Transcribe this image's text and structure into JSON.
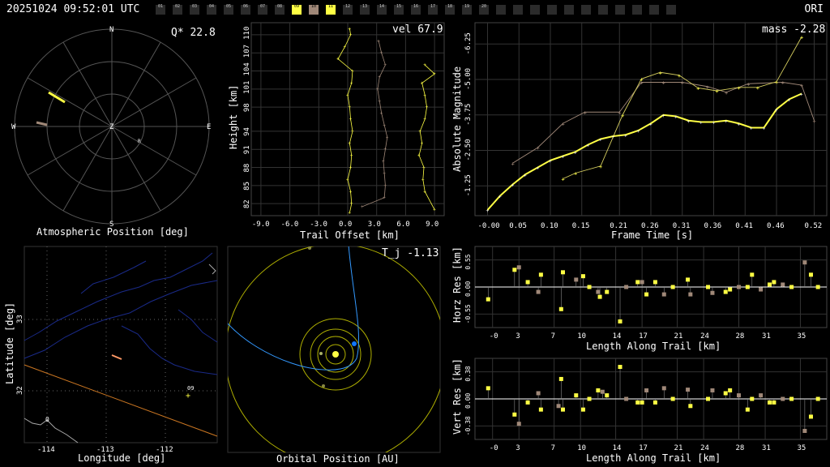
{
  "header": {
    "title": "20251024 09:52:01 UTC",
    "station": "ORI"
  },
  "cameras": [
    {
      "id": "01",
      "state": "off"
    },
    {
      "id": "02",
      "state": "off"
    },
    {
      "id": "03",
      "state": "off"
    },
    {
      "id": "04",
      "state": "off"
    },
    {
      "id": "05",
      "state": "off"
    },
    {
      "id": "06",
      "state": "off"
    },
    {
      "id": "07",
      "state": "off"
    },
    {
      "id": "08",
      "state": "off"
    },
    {
      "id": "09",
      "state": "yellow"
    },
    {
      "id": "10",
      "state": "tan"
    },
    {
      "id": "11",
      "state": "yellow"
    },
    {
      "id": "12",
      "state": "off"
    },
    {
      "id": "13",
      "state": "off"
    },
    {
      "id": "14",
      "state": "off"
    },
    {
      "id": "15",
      "state": "off"
    },
    {
      "id": "16",
      "state": "off"
    },
    {
      "id": "17",
      "state": "off"
    },
    {
      "id": "18",
      "state": "off"
    },
    {
      "id": "19",
      "state": "off"
    },
    {
      "id": "20",
      "state": "off"
    },
    {
      "id": "",
      "state": "off"
    },
    {
      "id": "",
      "state": "off"
    },
    {
      "id": "",
      "state": "off"
    },
    {
      "id": "",
      "state": "off"
    },
    {
      "id": "",
      "state": "off"
    },
    {
      "id": "",
      "state": "off"
    },
    {
      "id": "",
      "state": "off"
    },
    {
      "id": "",
      "state": "off"
    },
    {
      "id": "",
      "state": "off"
    },
    {
      "id": "",
      "state": "off"
    },
    {
      "id": "",
      "state": "off"
    }
  ],
  "colors": {
    "yellow": "#ffff44",
    "tan": "#a08878",
    "grid": "#555555",
    "orbit": "#b0b000",
    "blue": "#3399ff",
    "orange": "#cc7722",
    "map": "#1a2a88"
  },
  "sky": {
    "stat": "Q* 22.8",
    "caption": "Atmospheric Position [deg]",
    "dirs": {
      "n": "N",
      "s": "S",
      "e": "E",
      "w": "W",
      "z": "Z",
      "r": "R"
    },
    "tracks": [
      {
        "from": [
          -78,
          -42
        ],
        "to": [
          -58,
          -30
        ],
        "color": "yellow"
      },
      {
        "from": [
          -93,
          -5
        ],
        "to": [
          -80,
          -2
        ],
        "color": "tan"
      }
    ]
  },
  "height": {
    "stat": "vel 67.9",
    "xlabel": "Trail Offset [km]",
    "ylabel": "Height [km]",
    "xticks": [
      "-9.0",
      "-6.0",
      "-3.0",
      "0.0",
      "3.0",
      "6.0",
      "9.0"
    ],
    "yticks": [
      "82",
      "85",
      "88",
      "91",
      "94",
      "98",
      "101",
      "104",
      "107",
      "110"
    ],
    "series": [
      {
        "color": "yellow",
        "offset": 0,
        "points": [
          [
            0.2,
            80.5
          ],
          [
            0.4,
            82
          ],
          [
            0.3,
            84
          ],
          [
            0,
            86
          ],
          [
            0.3,
            88
          ],
          [
            0.4,
            90
          ],
          [
            0.2,
            92
          ],
          [
            0.5,
            94
          ],
          [
            0.3,
            96
          ],
          [
            0.2,
            98
          ],
          [
            0,
            100
          ],
          [
            0.4,
            102
          ],
          [
            0.5,
            104
          ],
          [
            -1,
            106
          ],
          [
            -0.3,
            108
          ],
          [
            0.3,
            110
          ],
          [
            0.2,
            111
          ]
        ]
      },
      {
        "color": "tan",
        "offset": 3.5,
        "points": [
          [
            -2,
            81.5
          ],
          [
            0.3,
            83
          ],
          [
            0.4,
            85
          ],
          [
            0.3,
            87
          ],
          [
            0.2,
            89
          ],
          [
            0.4,
            91
          ],
          [
            0.6,
            93
          ],
          [
            0.3,
            95
          ],
          [
            0,
            97
          ],
          [
            -0.2,
            99
          ],
          [
            -0.4,
            101
          ],
          [
            -0.2,
            103
          ],
          [
            0.4,
            105
          ],
          [
            0,
            107
          ],
          [
            -0.3,
            109
          ]
        ]
      },
      {
        "color": "yellow",
        "offset": 8,
        "points": [
          [
            1,
            81
          ],
          [
            0,
            84
          ],
          [
            -0.2,
            86
          ],
          [
            -0.1,
            88
          ],
          [
            -0.6,
            90
          ],
          [
            -0.3,
            92
          ],
          [
            -0.5,
            94
          ],
          [
            0,
            96
          ],
          [
            0.2,
            98
          ],
          [
            0,
            100
          ],
          [
            -0.3,
            102
          ],
          [
            1,
            103.5
          ],
          [
            0,
            105
          ]
        ]
      }
    ]
  },
  "mag": {
    "stat": "mass -2.28",
    "xlabel": "Frame Time [s]",
    "ylabel": "Absolute Magnitude",
    "xticks": [
      "-0.00",
      "0.05",
      "0.10",
      "0.15",
      "0.21",
      "0.26",
      "0.31",
      "0.36",
      "0.41",
      "0.46",
      "0.52"
    ],
    "yticks": [
      "-6.25",
      "-5.00",
      "-3.75",
      "-2.50",
      "-1.25"
    ],
    "smooth": [
      [
        0,
        -0.4
      ],
      [
        0.02,
        -0.9
      ],
      [
        0.04,
        -1.3
      ],
      [
        0.06,
        -1.65
      ],
      [
        0.08,
        -1.9
      ],
      [
        0.1,
        -2.15
      ],
      [
        0.12,
        -2.3
      ],
      [
        0.14,
        -2.45
      ],
      [
        0.16,
        -2.7
      ],
      [
        0.18,
        -2.9
      ],
      [
        0.2,
        -3.0
      ],
      [
        0.22,
        -3.05
      ],
      [
        0.24,
        -3.2
      ],
      [
        0.26,
        -3.45
      ],
      [
        0.28,
        -3.75
      ],
      [
        0.3,
        -3.7
      ],
      [
        0.32,
        -3.55
      ],
      [
        0.34,
        -3.5
      ],
      [
        0.36,
        -3.5
      ],
      [
        0.38,
        -3.55
      ],
      [
        0.4,
        -3.45
      ],
      [
        0.42,
        -3.3
      ],
      [
        0.44,
        -3.3
      ],
      [
        0.46,
        -3.95
      ],
      [
        0.48,
        -4.3
      ],
      [
        0.5,
        -4.5
      ]
    ],
    "yellow_pts": [
      [
        0.12,
        -1.5
      ],
      [
        0.14,
        -1.7
      ],
      [
        0.18,
        -1.95
      ],
      [
        0.215,
        -3.75
      ],
      [
        0.245,
        -5.02
      ],
      [
        0.275,
        -5.25
      ],
      [
        0.305,
        -5.15
      ],
      [
        0.335,
        -4.7
      ],
      [
        0.365,
        -4.6
      ],
      [
        0.4,
        -4.72
      ],
      [
        0.43,
        -4.72
      ],
      [
        0.46,
        -4.92
      ],
      [
        0.5,
        -6.5
      ]
    ],
    "tan_pts": [
      [
        0.04,
        -2.05
      ],
      [
        0.08,
        -2.6
      ],
      [
        0.12,
        -3.45
      ],
      [
        0.155,
        -3.85
      ],
      [
        0.21,
        -3.85
      ],
      [
        0.245,
        -4.9
      ],
      [
        0.28,
        -4.9
      ],
      [
        0.31,
        -4.9
      ],
      [
        0.35,
        -4.75
      ],
      [
        0.38,
        -4.55
      ],
      [
        0.415,
        -4.85
      ],
      [
        0.47,
        -4.9
      ],
      [
        0.5,
        -4.8
      ],
      [
        0.52,
        -3.55
      ]
    ]
  },
  "map": {
    "caption": "Longitude [deg]",
    "ylabel": "Latitude [deg]",
    "xticks": [
      "-114",
      "-113",
      "-112"
    ],
    "yticks": [
      "33",
      "32"
    ],
    "cam_label": "09",
    "corner": "0"
  },
  "orbit": {
    "stat": "T_j -1.13",
    "caption": "Orbital Position [AU]"
  },
  "horz": {
    "ylabel": "Horz Res [km]",
    "xlabel": "Length Along Trail [km]",
    "xticks": [
      "-0",
      "3",
      "7",
      "10",
      "14",
      "17",
      "21",
      "24",
      "28",
      "31",
      "35"
    ],
    "yticks": [
      "0.55",
      "0.00",
      "-0.55"
    ],
    "points": [
      [
        -0.5,
        -0.25,
        "yellow"
      ],
      [
        2.5,
        0.35,
        "yellow"
      ],
      [
        3,
        0.4,
        "tan"
      ],
      [
        4,
        0.1,
        "yellow"
      ],
      [
        5.2,
        -0.1,
        "tan"
      ],
      [
        5.5,
        0.25,
        "yellow"
      ],
      [
        7.8,
        -0.45,
        "yellow"
      ],
      [
        8,
        0.3,
        "yellow"
      ],
      [
        9.5,
        0.15,
        "tan"
      ],
      [
        10.3,
        0.22,
        "yellow"
      ],
      [
        11,
        0.0,
        "yellow"
      ],
      [
        12,
        -0.1,
        "tan"
      ],
      [
        12.2,
        -0.2,
        "yellow"
      ],
      [
        13,
        -0.1,
        "yellow"
      ],
      [
        14.5,
        -0.7,
        "yellow"
      ],
      [
        15.2,
        0.0,
        "tan"
      ],
      [
        16.5,
        0.1,
        "yellow"
      ],
      [
        17,
        0.1,
        "tan"
      ],
      [
        17.5,
        -0.15,
        "yellow"
      ],
      [
        18.5,
        0.1,
        "yellow"
      ],
      [
        19.5,
        -0.15,
        "tan"
      ],
      [
        20.5,
        0.0,
        "yellow"
      ],
      [
        22.2,
        0.15,
        "yellow"
      ],
      [
        22.5,
        -0.15,
        "tan"
      ],
      [
        24.5,
        0.0,
        "yellow"
      ],
      [
        25,
        -0.12,
        "tan"
      ],
      [
        26.5,
        -0.1,
        "yellow"
      ],
      [
        27,
        -0.05,
        "yellow"
      ],
      [
        28,
        0.0,
        "tan"
      ],
      [
        29,
        0.0,
        "yellow"
      ],
      [
        29.5,
        0.25,
        "yellow"
      ],
      [
        30.5,
        -0.05,
        "tan"
      ],
      [
        31.5,
        0.05,
        "yellow"
      ],
      [
        32,
        0.1,
        "yellow"
      ],
      [
        33,
        0.05,
        "tan"
      ],
      [
        34,
        0.0,
        "yellow"
      ],
      [
        35.5,
        0.5,
        "tan"
      ],
      [
        36.2,
        0.25,
        "yellow"
      ],
      [
        37,
        0.0,
        "yellow"
      ]
    ]
  },
  "vert": {
    "ylabel": "Vert Res [km]",
    "xlabel": "Length Along Trail [km]",
    "xticks": [
      "-0",
      "3",
      "7",
      "10",
      "14",
      "17",
      "21",
      "24",
      "28",
      "31",
      "35"
    ],
    "yticks": [
      "0.38",
      "0.00",
      "-0.38"
    ],
    "points": [
      [
        -0.5,
        0.15,
        "yellow"
      ],
      [
        2.5,
        -0.22,
        "yellow"
      ],
      [
        3,
        -0.35,
        "tan"
      ],
      [
        4,
        -0.05,
        "yellow"
      ],
      [
        5.2,
        0.08,
        "tan"
      ],
      [
        5.5,
        -0.15,
        "yellow"
      ],
      [
        7.5,
        -0.1,
        "tan"
      ],
      [
        7.8,
        0.28,
        "yellow"
      ],
      [
        8,
        -0.15,
        "yellow"
      ],
      [
        9.5,
        0.05,
        "yellow"
      ],
      [
        10.3,
        -0.15,
        "yellow"
      ],
      [
        11,
        0.0,
        "yellow"
      ],
      [
        12,
        0.12,
        "yellow"
      ],
      [
        12.5,
        0.1,
        "tan"
      ],
      [
        13,
        0.05,
        "yellow"
      ],
      [
        14.5,
        0.45,
        "yellow"
      ],
      [
        15.2,
        0.0,
        "tan"
      ],
      [
        16.5,
        -0.05,
        "yellow"
      ],
      [
        17,
        -0.05,
        "yellow"
      ],
      [
        17.5,
        0.12,
        "tan"
      ],
      [
        18.5,
        -0.05,
        "yellow"
      ],
      [
        19.5,
        0.15,
        "tan"
      ],
      [
        20.5,
        0.0,
        "yellow"
      ],
      [
        22.2,
        0.13,
        "tan"
      ],
      [
        22.5,
        -0.1,
        "yellow"
      ],
      [
        24.5,
        0.0,
        "yellow"
      ],
      [
        25,
        0.12,
        "tan"
      ],
      [
        26.5,
        0.08,
        "yellow"
      ],
      [
        27,
        0.12,
        "yellow"
      ],
      [
        28,
        0.05,
        "tan"
      ],
      [
        29,
        -0.15,
        "yellow"
      ],
      [
        29.5,
        0.0,
        "yellow"
      ],
      [
        30.5,
        0.05,
        "tan"
      ],
      [
        31.5,
        -0.05,
        "yellow"
      ],
      [
        32,
        -0.05,
        "yellow"
      ],
      [
        33,
        0.0,
        "tan"
      ],
      [
        34,
        0.0,
        "yellow"
      ],
      [
        35.5,
        -0.45,
        "tan"
      ],
      [
        36.2,
        -0.25,
        "yellow"
      ],
      [
        37,
        0.0,
        "yellow"
      ]
    ]
  }
}
